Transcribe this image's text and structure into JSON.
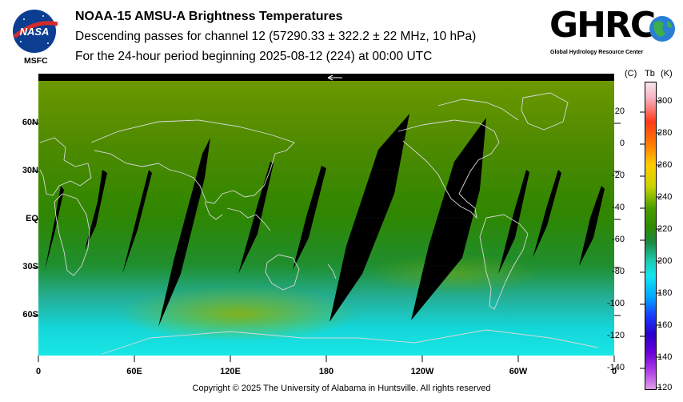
{
  "header": {
    "title": "NOAA-15 AMSU-A Brightness Temperatures",
    "subtitle1": "Descending passes for channel 12 (57290.33 ± 322.2 ± 22 MHz, 10 hPa)",
    "subtitle2": "For the 24-hour period beginning 2025-08-12 (224) at 00:00 UTC"
  },
  "logos": {
    "nasa_text": "NASA",
    "msfc_text": "MSFC",
    "ghrc_text": "GHRC",
    "ghrc_subtitle": "Global Hydrology Resource Center"
  },
  "map": {
    "lat_labels": [
      "60N",
      "30N",
      "EQ",
      "30S",
      "60S"
    ],
    "lon_labels": [
      "0",
      "60E",
      "120E",
      "180",
      "120W",
      "60W",
      "0"
    ]
  },
  "colorbar": {
    "header_c": "(C)",
    "header_tb": "Tb",
    "header_k": "(K)",
    "celsius_ticks": [
      "20",
      "0",
      "-20",
      "-40",
      "-60",
      "-80",
      "-100",
      "-120",
      "-140"
    ],
    "kelvin_ticks": [
      "300",
      "280",
      "260",
      "240",
      "220",
      "200",
      "180",
      "160",
      "140",
      "120"
    ]
  },
  "footer": {
    "copyright": "Copyright © 2025 The University of Alabama in Huntsville.  All rights reserved"
  }
}
